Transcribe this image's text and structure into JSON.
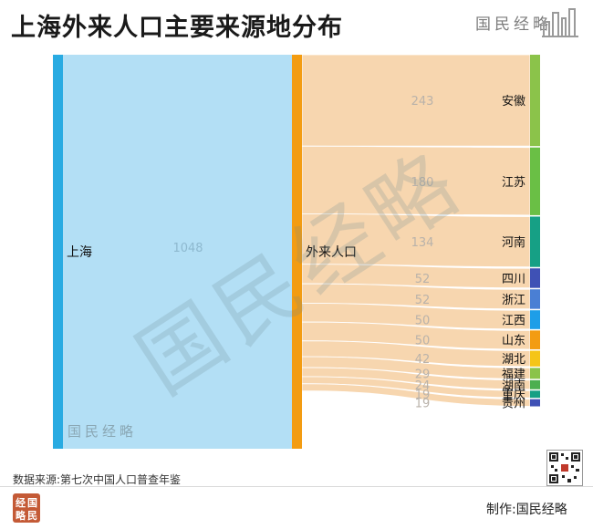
{
  "title": "上海外来人口主要来源地分布",
  "brand": "国民经略",
  "watermark": "国民经略",
  "source_note": "数据来源:第七次中国人口普查年鉴",
  "maker_label": "制作:国民经略",
  "logo_chars": [
    "国",
    "民",
    "经",
    "略"
  ],
  "icons": {
    "skyline": "skyline-bars-icon",
    "qr": "qr-code-icon",
    "logo": "seal-logo-icon"
  },
  "chart_data": {
    "type": "sankey",
    "title": "上海外来人口主要来源地分布",
    "unit": "",
    "nodes": [
      {
        "id": "上海",
        "value": 1048,
        "color": "#29abe2"
      },
      {
        "id": "外来人口",
        "value": 1048,
        "color": "#f39c12"
      },
      {
        "id": "安徽",
        "value": 243,
        "color": "#8bc34a"
      },
      {
        "id": "江苏",
        "value": 180,
        "color": "#6abf45"
      },
      {
        "id": "河南",
        "value": 134,
        "color": "#16a085"
      },
      {
        "id": "四川",
        "value": 52,
        "color": "#3f51b5"
      },
      {
        "id": "浙江",
        "value": 52,
        "color": "#4a7fd4"
      },
      {
        "id": "江西",
        "value": 50,
        "color": "#1e9ee8"
      },
      {
        "id": "山东",
        "value": 50,
        "color": "#f39c12"
      },
      {
        "id": "湖北",
        "value": 42,
        "color": "#f5c518"
      },
      {
        "id": "福建",
        "value": 29,
        "color": "#8bc34a"
      },
      {
        "id": "湖南",
        "value": 24,
        "color": "#4caf50"
      },
      {
        "id": "重庆",
        "value": 19,
        "color": "#16a085"
      },
      {
        "id": "贵州",
        "value": 19,
        "color": "#3f51b5"
      }
    ],
    "links": [
      {
        "source": "上海",
        "target": "外来人口",
        "value": 1048
      },
      {
        "source": "外来人口",
        "target": "安徽",
        "value": 243
      },
      {
        "source": "外来人口",
        "target": "江苏",
        "value": 180
      },
      {
        "source": "外来人口",
        "target": "河南",
        "value": 134
      },
      {
        "source": "外来人口",
        "target": "四川",
        "value": 52
      },
      {
        "source": "外来人口",
        "target": "浙江",
        "value": 52
      },
      {
        "source": "外来人口",
        "target": "江西",
        "value": 50
      },
      {
        "source": "外来人口",
        "target": "山东",
        "value": 50
      },
      {
        "source": "外来人口",
        "target": "湖北",
        "value": 42
      },
      {
        "source": "外来人口",
        "target": "福建",
        "value": 29
      },
      {
        "source": "外来人口",
        "target": "湖南",
        "value": 24
      },
      {
        "source": "外来人口",
        "target": "重庆",
        "value": 19
      },
      {
        "source": "外来人口",
        "target": "贵州",
        "value": 19
      }
    ]
  }
}
